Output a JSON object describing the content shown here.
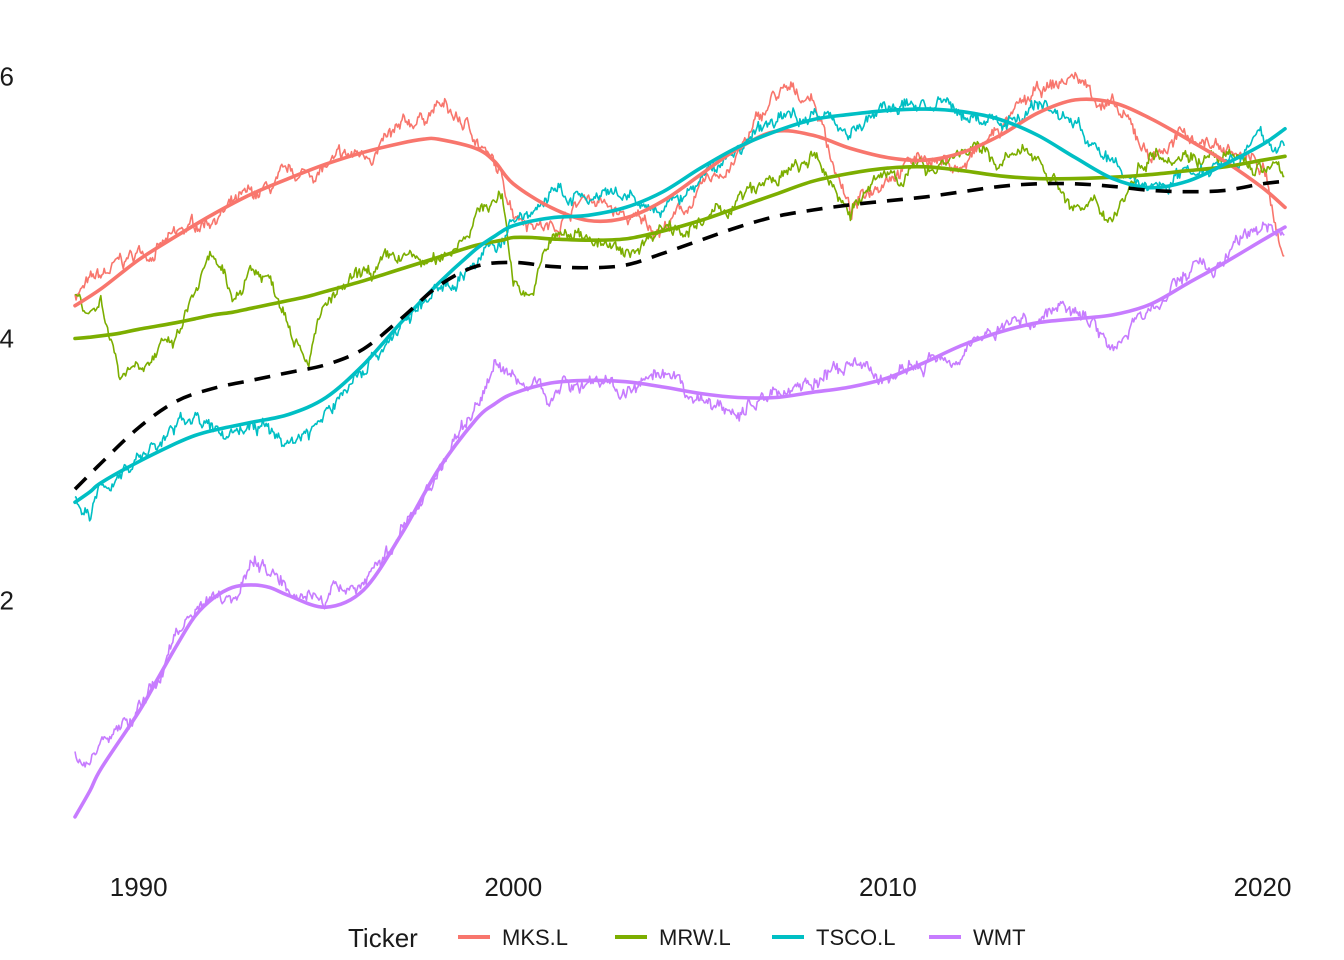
{
  "chart_data": {
    "type": "line",
    "title": "",
    "xlabel": "",
    "ylabel": "",
    "xlim": [
      1988.3,
      2020.6
    ],
    "ylim": [
      0.25,
      6.3
    ],
    "x_ticks": [
      "1990",
      "2000",
      "2010",
      "2020"
    ],
    "y_ticks": [
      "2",
      "4",
      "6"
    ],
    "grid": false,
    "legend": {
      "title": "Ticker",
      "position": "bottom"
    },
    "series": [
      {
        "name": "MKS.L",
        "color": "#F8766D",
        "x": [
          1988.3,
          1989,
          1990,
          1991,
          1992,
          1993,
          1994,
          1995,
          1996,
          1997,
          1997.6,
          1998,
          1999,
          1999.5,
          2000,
          2001,
          2002,
          2003,
          2004,
          2005,
          2006,
          2007,
          2008,
          2009,
          2010,
          2011,
          2012,
          2013,
          2014,
          2015,
          2016,
          2017,
          2018,
          2019,
          2020,
          2020.6
        ],
        "raw": [
          4.35,
          4.45,
          4.65,
          4.75,
          4.95,
          5.05,
          5.2,
          5.3,
          5.4,
          5.55,
          5.7,
          5.78,
          5.55,
          5.3,
          5.0,
          4.85,
          5.1,
          4.9,
          4.85,
          5.1,
          5.4,
          5.85,
          5.85,
          4.95,
          5.3,
          5.4,
          5.3,
          5.6,
          5.85,
          6.0,
          5.75,
          5.4,
          5.55,
          5.45,
          5.3,
          4.6
        ],
        "smooth": [
          4.25,
          4.38,
          4.6,
          4.78,
          4.95,
          5.1,
          5.22,
          5.33,
          5.42,
          5.49,
          5.52,
          5.52,
          5.45,
          5.35,
          5.18,
          5.0,
          4.9,
          4.92,
          5.05,
          5.25,
          5.45,
          5.58,
          5.55,
          5.45,
          5.38,
          5.36,
          5.42,
          5.55,
          5.72,
          5.82,
          5.8,
          5.68,
          5.52,
          5.35,
          5.15,
          5.0
        ]
      },
      {
        "name": "MRW.L",
        "color": "#7CAE00",
        "x": [
          1988.3,
          1988.7,
          1989,
          1989.5,
          1990,
          1991,
          1991.5,
          1992,
          1992.5,
          1993,
          1993.5,
          1994,
          1994.5,
          1995,
          1996,
          1997,
          1998,
          1999,
          1999.7,
          2000,
          2000.5,
          2001,
          2002,
          2003,
          2004,
          2005,
          2006,
          2007,
          2008,
          2009,
          2010,
          2011,
          2012,
          2013,
          2014,
          2015,
          2016,
          2017,
          2018,
          2019,
          2020,
          2020.6
        ],
        "raw": [
          4.35,
          4.2,
          4.3,
          3.75,
          3.85,
          3.95,
          4.35,
          4.6,
          4.25,
          4.55,
          4.45,
          4.2,
          3.9,
          4.25,
          4.45,
          4.6,
          4.55,
          4.95,
          5.1,
          4.45,
          4.35,
          4.75,
          4.8,
          4.6,
          4.9,
          4.85,
          5.05,
          5.2,
          5.35,
          5.0,
          5.25,
          5.3,
          5.45,
          5.35,
          5.4,
          5.0,
          4.95,
          5.45,
          5.45,
          5.35,
          5.3,
          5.25
        ],
        "smooth": [
          4.0,
          4.01,
          4.02,
          4.04,
          4.07,
          4.12,
          4.15,
          4.18,
          4.2,
          4.23,
          4.26,
          4.29,
          4.32,
          4.36,
          4.44,
          4.53,
          4.62,
          4.71,
          4.75,
          4.77,
          4.77,
          4.76,
          4.75,
          4.76,
          4.82,
          4.9,
          5.0,
          5.1,
          5.2,
          5.26,
          5.3,
          5.31,
          5.28,
          5.24,
          5.22,
          5.22,
          5.23,
          5.25,
          5.28,
          5.31,
          5.36,
          5.39
        ]
      },
      {
        "name": "TSCO.L",
        "color": "#00BFC4",
        "x": [
          1988.3,
          1988.7,
          1989,
          1990,
          1991,
          1991.5,
          1992,
          1993,
          1994,
          1995,
          1996,
          1997,
          1998,
          1999,
          1999.5,
          2000,
          2001,
          2002,
          2003,
          2004,
          2005,
          2006,
          2007,
          2008,
          2009,
          2010,
          2011,
          2012,
          2013,
          2014,
          2015,
          2016,
          2017,
          2018,
          2019,
          2020,
          2020.6
        ],
        "raw": [
          2.8,
          2.6,
          2.85,
          3.1,
          3.3,
          3.45,
          3.25,
          3.35,
          3.2,
          3.4,
          3.8,
          4.1,
          4.35,
          4.6,
          4.7,
          4.85,
          5.1,
          5.05,
          5.05,
          4.95,
          5.2,
          5.45,
          5.65,
          5.75,
          5.6,
          5.75,
          5.8,
          5.7,
          5.65,
          5.8,
          5.65,
          5.3,
          5.15,
          5.3,
          5.4,
          5.5,
          5.45
        ],
        "smooth": [
          2.75,
          2.83,
          2.9,
          3.06,
          3.2,
          3.26,
          3.3,
          3.36,
          3.42,
          3.55,
          3.8,
          4.12,
          4.42,
          4.68,
          4.78,
          4.86,
          4.92,
          4.94,
          5.0,
          5.12,
          5.3,
          5.46,
          5.58,
          5.67,
          5.71,
          5.74,
          5.75,
          5.73,
          5.67,
          5.55,
          5.38,
          5.22,
          5.15,
          5.2,
          5.33,
          5.48,
          5.6
        ]
      },
      {
        "name": "WMT",
        "color": "#C77CFF",
        "x": [
          1988.3,
          1988.7,
          1989,
          1990,
          1990.5,
          1991,
          1991.5,
          1992,
          1992.5,
          1993,
          1993.5,
          1994,
          1995,
          1996,
          1997,
          1998,
          1999,
          1999.5,
          2000,
          2001,
          2002,
          2003,
          2004,
          2005,
          2006,
          2007,
          2008,
          2009,
          2010,
          2011,
          2012,
          2013,
          2014,
          2015,
          2016,
          2017,
          2018,
          2019,
          2020,
          2020.6
        ],
        "raw": [
          0.8,
          0.8,
          0.9,
          1.15,
          1.4,
          1.75,
          1.95,
          2.1,
          2.05,
          2.3,
          2.25,
          2.15,
          2.0,
          2.15,
          2.5,
          3.0,
          3.5,
          3.8,
          3.7,
          3.6,
          3.7,
          3.6,
          3.65,
          3.5,
          3.45,
          3.6,
          3.7,
          3.75,
          3.7,
          3.8,
          3.95,
          4.1,
          4.15,
          4.3,
          3.95,
          4.2,
          4.5,
          4.6,
          4.85,
          4.85
        ],
        "smooth": [
          0.35,
          0.55,
          0.72,
          1.15,
          1.4,
          1.65,
          1.88,
          2.02,
          2.1,
          2.12,
          2.1,
          2.04,
          1.95,
          2.08,
          2.5,
          3.0,
          3.38,
          3.5,
          3.58,
          3.66,
          3.68,
          3.67,
          3.63,
          3.58,
          3.55,
          3.55,
          3.59,
          3.63,
          3.7,
          3.82,
          3.95,
          4.05,
          4.12,
          4.15,
          4.18,
          4.26,
          4.42,
          4.58,
          4.75,
          4.85
        ]
      },
      {
        "name": "",
        "color": "#000000",
        "style": "dashed",
        "x": [
          1988.3,
          1989,
          1990,
          1991,
          1992,
          1993,
          1994,
          1995,
          1996,
          1997,
          1998,
          1999,
          2000,
          2001,
          2002,
          2003,
          2004,
          2005,
          2006,
          2007,
          2008,
          2009,
          2010,
          2011,
          2012,
          2013,
          2014,
          2015,
          2016,
          2017,
          2018,
          2019,
          2020,
          2020.6
        ],
        "values": [
          2.85,
          3.05,
          3.32,
          3.52,
          3.62,
          3.68,
          3.74,
          3.8,
          3.92,
          4.15,
          4.4,
          4.55,
          4.58,
          4.55,
          4.54,
          4.56,
          4.65,
          4.75,
          4.85,
          4.93,
          4.98,
          5.02,
          5.05,
          5.08,
          5.12,
          5.16,
          5.18,
          5.18,
          5.16,
          5.13,
          5.12,
          5.13,
          5.18,
          5.2
        ]
      }
    ]
  }
}
